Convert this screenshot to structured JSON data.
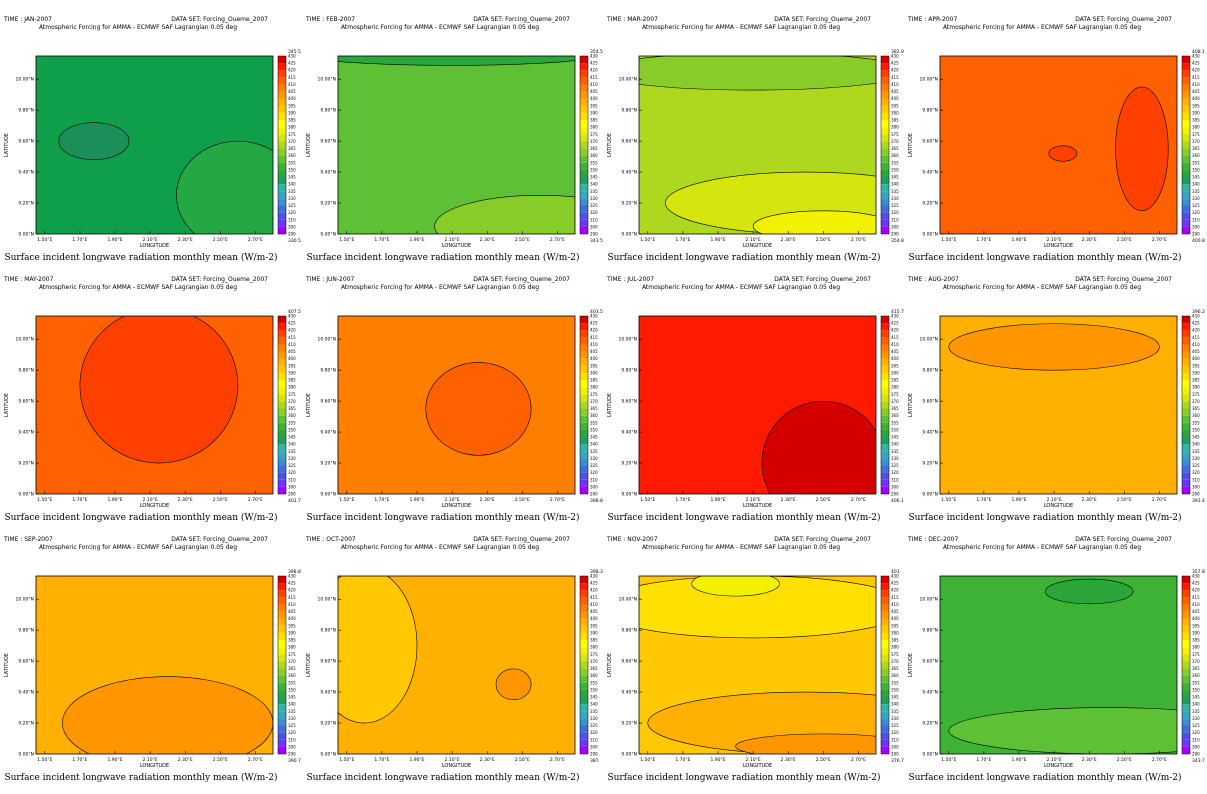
{
  "chart_data": {
    "type": "heatmap",
    "shared": {
      "title": "Atmospheric Forcing for AMMA - ECMWF SAF Lagrangian 0.05 deg",
      "dataset": "DATA SET: Forcing_Oueme_2007",
      "xlabel": "LONGITUDE",
      "ylabel": "LATITUDE",
      "caption": "Surface incident longwave radiation monthly mean (W/m-2)",
      "x_ticks": [
        "1.50°E",
        "1.70°E",
        "1.90°E",
        "2.10°E",
        "2.30°E",
        "2.50°E",
        "2.70°E"
      ],
      "y_ticks": [
        "9.00°N",
        "9.20°N",
        "9.40°N",
        "9.60°N",
        "9.80°N",
        "10.00°N"
      ],
      "xlim": [
        1.45,
        2.8
      ],
      "ylim": [
        9.0,
        10.15
      ],
      "colorbar_levels": [
        290,
        300,
        310,
        320,
        325,
        330,
        335,
        340,
        345,
        350,
        355,
        360,
        365,
        370,
        375,
        380,
        385,
        390,
        395,
        400,
        405,
        410,
        415,
        420,
        425,
        430
      ],
      "colorbar_labels": [
        "290",
        "300",
        "310",
        "320",
        "325",
        "330",
        "335",
        "340",
        "345",
        "350",
        "355",
        "360",
        "365",
        "370",
        "375",
        "380",
        "385",
        "390",
        "395",
        "400",
        "405",
        "410",
        "415",
        "420",
        "425",
        "430"
      ],
      "palette": [
        "#a600ff",
        "#7033ff",
        "#5050e0",
        "#3f6fd8",
        "#3a8fd0",
        "#35a8c0",
        "#2fb5a0",
        "#1e9e5a",
        "#2aa63a",
        "#3db235",
        "#5ec034",
        "#88cc2a",
        "#aed81e",
        "#d5e60e",
        "#f2f200",
        "#ffff00",
        "#ffe000",
        "#ffc800",
        "#ffb000",
        "#ff9600",
        "#ff7e00",
        "#ff6000",
        "#ff4000",
        "#ff1a00",
        "#d40000"
      ]
    },
    "panels": [
      {
        "time": "TIME : JAN-2007",
        "max": "345.5",
        "min": "330.5",
        "base": "#0f9e4a",
        "patches": [
          {
            "color": "#1a8f5a",
            "cx": 1.78,
            "cy": 9.6,
            "rx": 0.2,
            "ry": 0.12
          },
          {
            "color": "#23a843",
            "cx": 2.6,
            "cy": 9.25,
            "rx": 0.35,
            "ry": 0.35
          }
        ]
      },
      {
        "time": "TIME : FEB-2007",
        "max": "354.5",
        "min": "343.5",
        "base": "#5ec034",
        "patches": [
          {
            "color": "#2aa63a",
            "cx": 2.1,
            "cy": 10.15,
            "rx": 0.8,
            "ry": 0.06
          },
          {
            "color": "#88cc2a",
            "cx": 2.6,
            "cy": 9.05,
            "rx": 0.6,
            "ry": 0.2
          }
        ]
      },
      {
        "time": "TIME : MAR-2007",
        "max": "382.9",
        "min": "354.8",
        "base": "#aed81e",
        "patches": [
          {
            "color": "#88cc2a",
            "cx": 2.1,
            "cy": 10.05,
            "rx": 0.9,
            "ry": 0.12
          },
          {
            "color": "#d5e60e",
            "cx": 2.4,
            "cy": 9.2,
            "rx": 0.8,
            "ry": 0.2
          },
          {
            "color": "#f2f200",
            "cx": 2.5,
            "cy": 9.05,
            "rx": 0.4,
            "ry": 0.1
          }
        ]
      },
      {
        "time": "TIME : APR-2007",
        "max": "408.1",
        "min": "400.8",
        "base": "#ff6000",
        "patches": [
          {
            "color": "#ff4000",
            "cx": 2.6,
            "cy": 9.55,
            "rx": 0.15,
            "ry": 0.4
          },
          {
            "color": "#ff4000",
            "cx": 2.15,
            "cy": 9.52,
            "rx": 0.08,
            "ry": 0.05
          }
        ]
      },
      {
        "time": "TIME : MAY-2007",
        "max": "407.5",
        "min": "401.7",
        "base": "#ff6000",
        "patches": [
          {
            "color": "#ff4000",
            "cx": 2.15,
            "cy": 9.7,
            "rx": 0.45,
            "ry": 0.5
          }
        ]
      },
      {
        "time": "TIME : JUN-2007",
        "max": "403.5",
        "min": "398.8",
        "base": "#ff7e00",
        "patches": [
          {
            "color": "#ff6000",
            "cx": 2.25,
            "cy": 9.55,
            "rx": 0.3,
            "ry": 0.3
          }
        ]
      },
      {
        "time": "TIME : JUL-2007",
        "max": "415.7",
        "min": "406.1",
        "base": "#ff1a00",
        "patches": [
          {
            "color": "#d40000",
            "cx": 2.5,
            "cy": 9.2,
            "rx": 0.35,
            "ry": 0.4
          }
        ]
      },
      {
        "time": "TIME : AUG-2007",
        "max": "396.2",
        "min": "391.4",
        "base": "#ffb000",
        "patches": [
          {
            "color": "#ff9600",
            "cx": 2.1,
            "cy": 9.95,
            "rx": 0.6,
            "ry": 0.15
          }
        ]
      },
      {
        "time": "TIME : SEP-2007",
        "max": "398.8",
        "min": "390.7",
        "base": "#ffb000",
        "patches": [
          {
            "color": "#ff9600",
            "cx": 2.2,
            "cy": 9.2,
            "rx": 0.6,
            "ry": 0.3
          }
        ]
      },
      {
        "time": "TIME : OCT-2007",
        "max": "398.3",
        "min": "387",
        "base": "#ffb000",
        "patches": [
          {
            "color": "#ffc800",
            "cx": 1.6,
            "cy": 9.7,
            "rx": 0.3,
            "ry": 0.5
          },
          {
            "color": "#ff9600",
            "cx": 2.45,
            "cy": 9.45,
            "rx": 0.1,
            "ry": 0.1
          }
        ]
      },
      {
        "time": "TIME : NOV-2007",
        "max": "401",
        "min": "376.7",
        "base": "#ffc800",
        "patches": [
          {
            "color": "#ffe000",
            "cx": 2.1,
            "cy": 9.95,
            "rx": 0.9,
            "ry": 0.2
          },
          {
            "color": "#f2f200",
            "cx": 2.0,
            "cy": 10.1,
            "rx": 0.25,
            "ry": 0.08
          },
          {
            "color": "#ffb000",
            "cx": 2.4,
            "cy": 9.2,
            "rx": 0.9,
            "ry": 0.2
          },
          {
            "color": "#ff9600",
            "cx": 2.5,
            "cy": 9.05,
            "rx": 0.5,
            "ry": 0.08
          }
        ]
      },
      {
        "time": "TIME : DEC-2007",
        "max": "357.8",
        "min": "343.7",
        "base": "#3db235",
        "patches": [
          {
            "color": "#5ec034",
            "cx": 2.4,
            "cy": 9.15,
            "rx": 0.9,
            "ry": 0.15
          },
          {
            "color": "#2aa63a",
            "cx": 2.3,
            "cy": 10.05,
            "rx": 0.25,
            "ry": 0.08
          }
        ]
      }
    ]
  }
}
